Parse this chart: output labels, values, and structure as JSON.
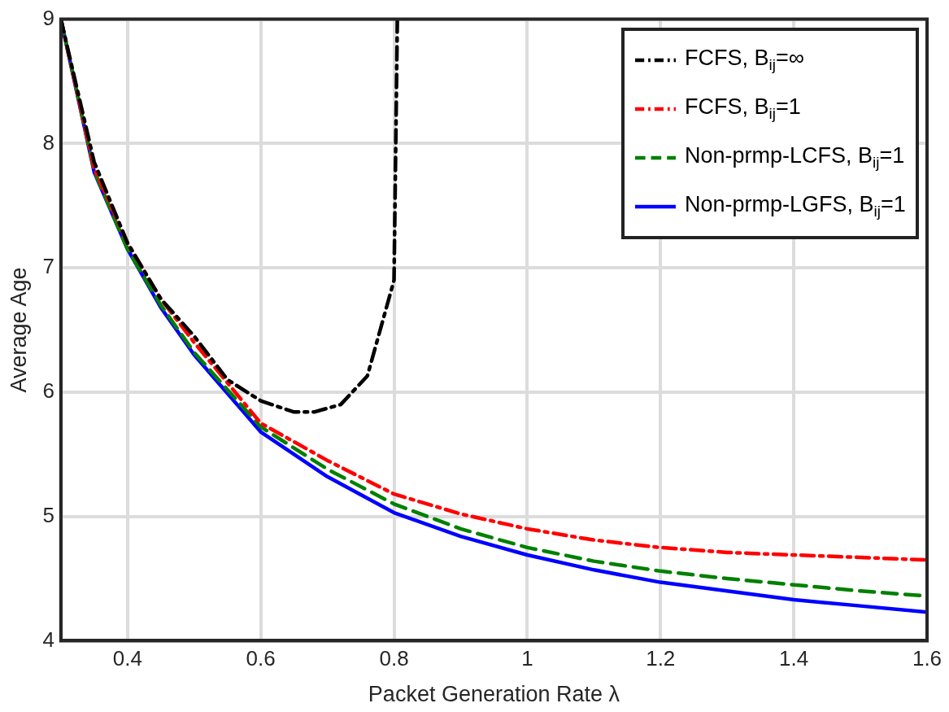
{
  "chart_data": {
    "type": "line",
    "xlabel": "Packet Generation Rate λ",
    "ylabel": "Average Age",
    "xlim": [
      0.3,
      1.6
    ],
    "xticks": [
      0.4,
      0.6,
      0.8,
      1,
      1.2,
      1.4,
      1.6
    ],
    "ylim": [
      4,
      9
    ],
    "yticks": [
      4,
      5,
      6,
      7,
      8,
      9
    ],
    "grid": true,
    "legend": "top right",
    "marker": "none",
    "series": [
      {
        "name": "FCFS, B$_{ij}$=∞",
        "color": "#000000",
        "line_style": "dashdot",
        "x": [
          0.3,
          0.35,
          0.4,
          0.45,
          0.5,
          0.55,
          0.6,
          0.65,
          0.68,
          0.72,
          0.76,
          0.8,
          0.805
        ],
        "values": [
          9,
          7.85,
          7.2,
          6.75,
          6.45,
          6.1,
          5.93,
          5.84,
          5.84,
          5.9,
          6.13,
          6.9,
          9
        ]
      },
      {
        "name": "FCFS, B$_{ij}$=1",
        "color": "#ff0000",
        "line_style": "dashdot",
        "x": [
          0.3,
          0.35,
          0.4,
          0.45,
          0.5,
          0.6,
          0.7,
          0.8,
          0.9,
          1,
          1.1,
          1.2,
          1.3,
          1.4,
          1.5,
          1.6
        ],
        "values": [
          9,
          7.8,
          7.2,
          6.75,
          6.4,
          5.75,
          5.45,
          5.18,
          5.02,
          4.9,
          4.81,
          4.75,
          4.71,
          4.69,
          4.67,
          4.65
        ]
      },
      {
        "name": "Non-prmp-LCFS, B$_{ij}$=1",
        "color": "#008000",
        "line_style": "dashed",
        "x": [
          0.3,
          0.35,
          0.4,
          0.45,
          0.5,
          0.6,
          0.7,
          0.8,
          0.9,
          1,
          1.1,
          1.2,
          1.3,
          1.4,
          1.5,
          1.6
        ],
        "values": [
          9,
          7.78,
          7.15,
          6.7,
          6.32,
          5.72,
          5.38,
          5.1,
          4.9,
          4.75,
          4.64,
          4.56,
          4.5,
          4.45,
          4.4,
          4.36
        ]
      },
      {
        "name": "Non-prmp-LGFS, B$_{ij}$=1",
        "color": "#0000ff",
        "line_style": "solid",
        "x": [
          0.3,
          0.35,
          0.4,
          0.45,
          0.5,
          0.6,
          0.7,
          0.8,
          0.9,
          1,
          1.1,
          1.2,
          1.3,
          1.4,
          1.5,
          1.6
        ],
        "values": [
          9,
          7.77,
          7.15,
          6.68,
          6.3,
          5.68,
          5.32,
          5.03,
          4.84,
          4.69,
          4.57,
          4.47,
          4.4,
          4.33,
          4.28,
          4.23
        ]
      }
    ]
  }
}
